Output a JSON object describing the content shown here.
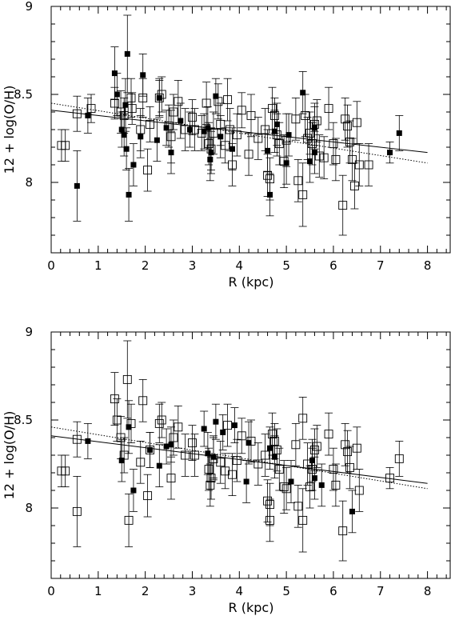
{
  "chart_data": [
    {
      "type": "scatter",
      "xlabel": "R (kpc)",
      "ylabel": "12 + log(O/H)",
      "xlim": [
        0,
        8.5
      ],
      "ylim": [
        7.6,
        9.0
      ],
      "xticks": [
        "0",
        "1",
        "2",
        "3",
        "4",
        "5",
        "6",
        "7",
        "8"
      ],
      "yticks": [
        "8",
        "8.5",
        "9"
      ],
      "fits": [
        {
          "style": "solid",
          "x": [
            0,
            8
          ],
          "y": [
            8.41,
            8.17
          ]
        },
        {
          "style": "dotted",
          "x": [
            0,
            8
          ],
          "y": [
            8.45,
            8.11
          ]
        }
      ],
      "series": [
        {
          "marker": "open-square",
          "points": [
            [
              0.22,
              8.21,
              0.09
            ],
            [
              0.3,
              8.21,
              0.09
            ],
            [
              0.55,
              8.39,
              0.1
            ],
            [
              0.85,
              8.42,
              0.08
            ],
            [
              1.35,
              8.45,
              0.09
            ],
            [
              1.48,
              8.4,
              0.12
            ],
            [
              1.55,
              8.38,
              0.1
            ],
            [
              1.7,
              8.48,
              0.11
            ],
            [
              1.72,
              8.42,
              0.09
            ],
            [
              1.9,
              8.3,
              0.12
            ],
            [
              1.95,
              8.48,
              0.11
            ],
            [
              2.05,
              8.07,
              0.12
            ],
            [
              2.1,
              8.33,
              0.1
            ],
            [
              2.3,
              8.48,
              0.11
            ],
            [
              2.35,
              8.5,
              0.1
            ],
            [
              2.5,
              8.32,
              0.12
            ],
            [
              2.55,
              8.26,
              0.15
            ],
            [
              2.6,
              8.4,
              0.1
            ],
            [
              2.7,
              8.46,
              0.12
            ],
            [
              2.85,
              8.3,
              0.12
            ],
            [
              3.0,
              8.37,
              0.1
            ],
            [
              3.05,
              8.3,
              0.12
            ],
            [
              3.2,
              8.28,
              0.1
            ],
            [
              3.3,
              8.45,
              0.12
            ],
            [
              3.35,
              8.22,
              0.12
            ],
            [
              3.4,
              8.19,
              0.12
            ],
            [
              3.45,
              8.28,
              0.12
            ],
            [
              3.55,
              8.46,
              0.1
            ],
            [
              3.6,
              8.33,
              0.12
            ],
            [
              3.7,
              8.21,
              0.1
            ],
            [
              3.75,
              8.47,
              0.12
            ],
            [
              3.8,
              8.3,
              0.12
            ],
            [
              3.85,
              8.1,
              0.12
            ],
            [
              3.95,
              8.27,
              0.12
            ],
            [
              4.05,
              8.41,
              0.1
            ],
            [
              4.2,
              8.16,
              0.12
            ],
            [
              4.25,
              8.38,
              0.12
            ],
            [
              4.4,
              8.25,
              0.12
            ],
            [
              4.55,
              8.3,
              0.12
            ],
            [
              4.6,
              8.04,
              0.12
            ],
            [
              4.65,
              8.02,
              0.12
            ],
            [
              4.7,
              8.42,
              0.12
            ],
            [
              4.75,
              8.38,
              0.1
            ],
            [
              4.8,
              8.27,
              0.12
            ],
            [
              4.85,
              8.22,
              0.12
            ],
            [
              4.95,
              8.12,
              0.15
            ],
            [
              5.0,
              8.24,
              0.15
            ],
            [
              5.2,
              8.36,
              0.12
            ],
            [
              5.25,
              8.01,
              0.12
            ],
            [
              5.35,
              7.93,
              0.18
            ],
            [
              5.4,
              8.38,
              0.12
            ],
            [
              5.45,
              8.25,
              0.12
            ],
            [
              5.5,
              8.28,
              0.12
            ],
            [
              5.55,
              8.22,
              0.12
            ],
            [
              5.6,
              8.33,
              0.12
            ],
            [
              5.65,
              8.35,
              0.12
            ],
            [
              5.7,
              8.15,
              0.12
            ],
            [
              5.8,
              8.14,
              0.12
            ],
            [
              5.9,
              8.42,
              0.12
            ],
            [
              6.0,
              8.22,
              0.12
            ],
            [
              6.05,
              8.13,
              0.12
            ],
            [
              6.2,
              7.87,
              0.17
            ],
            [
              6.25,
              8.36,
              0.12
            ],
            [
              6.3,
              8.32,
              0.12
            ],
            [
              6.35,
              8.23,
              0.12
            ],
            [
              6.4,
              8.13,
              0.12
            ],
            [
              6.45,
              7.98,
              0.13
            ],
            [
              6.5,
              8.34,
              0.12
            ],
            [
              6.55,
              8.1,
              0.12
            ],
            [
              6.75,
              8.1,
              0.12
            ]
          ]
        },
        {
          "marker": "filled-square",
          "points": [
            [
              0.55,
              7.98,
              0.2
            ],
            [
              0.78,
              8.38,
              0.1
            ],
            [
              1.35,
              8.62,
              0.15
            ],
            [
              1.4,
              8.5,
              0.12
            ],
            [
              1.5,
              8.3,
              0.1
            ],
            [
              1.55,
              8.27,
              0.12
            ],
            [
              1.58,
              8.44,
              0.15
            ],
            [
              1.6,
              8.19,
              0.12
            ],
            [
              1.62,
              8.73,
              0.22
            ],
            [
              1.65,
              7.93,
              0.15
            ],
            [
              1.75,
              8.1,
              0.12
            ],
            [
              1.9,
              8.26,
              0.12
            ],
            [
              1.95,
              8.61,
              0.12
            ],
            [
              2.25,
              8.24,
              0.12
            ],
            [
              2.3,
              8.48,
              0.1
            ],
            [
              2.45,
              8.31,
              0.1
            ],
            [
              2.55,
              8.17,
              0.12
            ],
            [
              2.75,
              8.35,
              0.1
            ],
            [
              2.95,
              8.3,
              0.1
            ],
            [
              3.25,
              8.29,
              0.1
            ],
            [
              3.33,
              8.31,
              0.12
            ],
            [
              3.38,
              8.13,
              0.12
            ],
            [
              3.4,
              8.17,
              0.12
            ],
            [
              3.5,
              8.49,
              0.1
            ],
            [
              3.6,
              8.26,
              0.12
            ],
            [
              3.85,
              8.19,
              0.12
            ],
            [
              4.6,
              8.18,
              0.12
            ],
            [
              4.65,
              7.93,
              0.12
            ],
            [
              4.75,
              8.29,
              0.12
            ],
            [
              4.8,
              8.33,
              0.12
            ],
            [
              5.0,
              8.11,
              0.12
            ],
            [
              5.05,
              8.27,
              0.12
            ],
            [
              5.35,
              8.51,
              0.12
            ],
            [
              5.5,
              8.12,
              0.12
            ],
            [
              5.6,
              8.17,
              0.12
            ],
            [
              5.6,
              8.31,
              0.12
            ],
            [
              7.2,
              8.17,
              0.06
            ],
            [
              7.4,
              8.28,
              0.1
            ]
          ]
        }
      ]
    },
    {
      "type": "scatter",
      "xlabel": "R (kpc)",
      "ylabel": "12 + log(O/H)",
      "xlim": [
        0,
        8.5
      ],
      "ylim": [
        7.6,
        9.0
      ],
      "xticks": [
        "0",
        "1",
        "2",
        "3",
        "4",
        "5",
        "6",
        "7",
        "8"
      ],
      "yticks": [
        "8",
        "8.5",
        "9"
      ],
      "fits": [
        {
          "style": "solid",
          "x": [
            0,
            8
          ],
          "y": [
            8.41,
            8.14
          ]
        },
        {
          "style": "dotted",
          "x": [
            0,
            8
          ],
          "y": [
            8.46,
            8.11
          ]
        }
      ],
      "series": [
        {
          "marker": "open-square",
          "points": [
            [
              0.22,
              8.21,
              0.09
            ],
            [
              0.3,
              8.21,
              0.09
            ],
            [
              0.55,
              7.98,
              0.2
            ],
            [
              0.55,
              8.39,
              0.1
            ],
            [
              1.35,
              8.62,
              0.15
            ],
            [
              1.4,
              8.5,
              0.12
            ],
            [
              1.48,
              8.4,
              0.12
            ],
            [
              1.55,
              8.3,
              0.1
            ],
            [
              1.62,
              8.73,
              0.22
            ],
            [
              1.65,
              7.93,
              0.15
            ],
            [
              1.7,
              8.48,
              0.11
            ],
            [
              1.9,
              8.26,
              0.12
            ],
            [
              1.95,
              8.61,
              0.12
            ],
            [
              2.05,
              8.07,
              0.12
            ],
            [
              2.1,
              8.33,
              0.1
            ],
            [
              2.3,
              8.48,
              0.11
            ],
            [
              2.35,
              8.5,
              0.1
            ],
            [
              2.55,
              8.17,
              0.12
            ],
            [
              2.6,
              8.4,
              0.1
            ],
            [
              2.7,
              8.46,
              0.12
            ],
            [
              2.85,
              8.3,
              0.12
            ],
            [
              3.0,
              8.37,
              0.1
            ],
            [
              3.05,
              8.3,
              0.12
            ],
            [
              3.35,
              8.22,
              0.12
            ],
            [
              3.38,
              8.13,
              0.12
            ],
            [
              3.4,
              8.17,
              0.12
            ],
            [
              3.45,
              8.28,
              0.12
            ],
            [
              3.6,
              8.26,
              0.12
            ],
            [
              3.7,
              8.21,
              0.1
            ],
            [
              3.75,
              8.47,
              0.12
            ],
            [
              3.85,
              8.19,
              0.12
            ],
            [
              3.95,
              8.27,
              0.12
            ],
            [
              4.05,
              8.41,
              0.1
            ],
            [
              4.25,
              8.38,
              0.12
            ],
            [
              4.4,
              8.25,
              0.12
            ],
            [
              4.55,
              8.3,
              0.12
            ],
            [
              4.6,
              8.04,
              0.12
            ],
            [
              4.65,
              7.93,
              0.12
            ],
            [
              4.65,
              8.02,
              0.12
            ],
            [
              4.7,
              8.42,
              0.12
            ],
            [
              4.75,
              8.38,
              0.1
            ],
            [
              4.8,
              8.33,
              0.12
            ],
            [
              4.85,
              8.22,
              0.12
            ],
            [
              4.95,
              8.12,
              0.15
            ],
            [
              5.0,
              8.11,
              0.12
            ],
            [
              5.2,
              8.36,
              0.12
            ],
            [
              5.25,
              8.01,
              0.12
            ],
            [
              5.35,
              7.93,
              0.18
            ],
            [
              5.35,
              8.51,
              0.12
            ],
            [
              5.45,
              8.25,
              0.12
            ],
            [
              5.5,
              8.12,
              0.12
            ],
            [
              5.55,
              8.22,
              0.12
            ],
            [
              5.6,
              8.33,
              0.12
            ],
            [
              5.65,
              8.35,
              0.12
            ],
            [
              5.9,
              8.42,
              0.12
            ],
            [
              6.0,
              8.22,
              0.12
            ],
            [
              6.05,
              8.13,
              0.12
            ],
            [
              6.2,
              7.87,
              0.17
            ],
            [
              6.25,
              8.36,
              0.12
            ],
            [
              6.3,
              8.32,
              0.12
            ],
            [
              6.35,
              8.23,
              0.12
            ],
            [
              6.5,
              8.34,
              0.12
            ],
            [
              6.55,
              8.1,
              0.12
            ],
            [
              7.2,
              8.17,
              0.06
            ],
            [
              7.4,
              8.28,
              0.1
            ]
          ]
        },
        {
          "marker": "filled-square",
          "points": [
            [
              0.78,
              8.38,
              0.1
            ],
            [
              1.5,
              8.27,
              0.12
            ],
            [
              1.65,
              8.46,
              0.15
            ],
            [
              1.75,
              8.1,
              0.12
            ],
            [
              2.1,
              8.33,
              0.1
            ],
            [
              2.3,
              8.24,
              0.12
            ],
            [
              2.45,
              8.35,
              0.1
            ],
            [
              2.55,
              8.36,
              0.1
            ],
            [
              3.25,
              8.45,
              0.1
            ],
            [
              3.33,
              8.31,
              0.12
            ],
            [
              3.45,
              8.29,
              0.12
            ],
            [
              3.5,
              8.49,
              0.1
            ],
            [
              3.65,
              8.43,
              0.1
            ],
            [
              3.9,
              8.47,
              0.1
            ],
            [
              4.15,
              8.15,
              0.12
            ],
            [
              4.2,
              8.37,
              0.12
            ],
            [
              4.65,
              8.34,
              0.12
            ],
            [
              4.75,
              8.29,
              0.12
            ],
            [
              5.1,
              8.15,
              0.12
            ],
            [
              5.55,
              8.27,
              0.12
            ],
            [
              5.6,
              8.17,
              0.12
            ],
            [
              5.75,
              8.13,
              0.12
            ],
            [
              6.4,
              7.98,
              0.12
            ]
          ]
        }
      ]
    }
  ]
}
